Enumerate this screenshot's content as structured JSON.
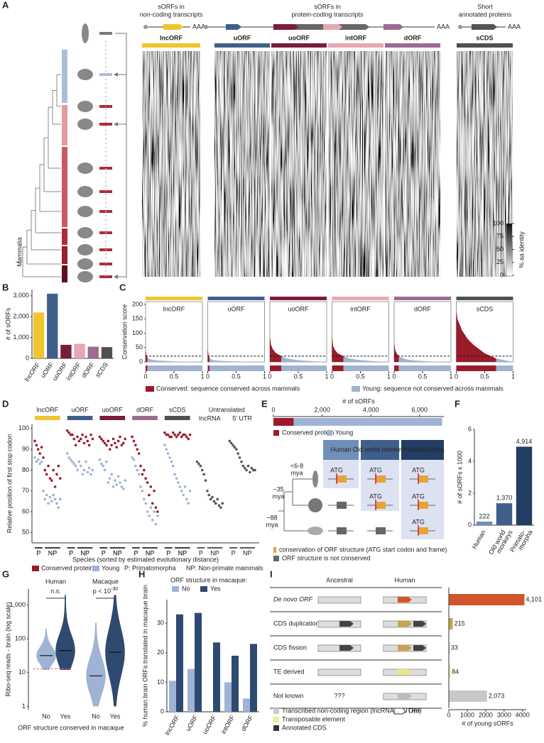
{
  "figure_a": {
    "panel": "A",
    "group_titles": [
      [
        "sORFs in",
        "non-coding transcripts"
      ],
      [
        "sORFs in",
        "protein-coding transcripts"
      ],
      [
        "Short",
        "annotated proteins"
      ]
    ],
    "polyA": "AAA",
    "orf_types": [
      {
        "name": "lncORF",
        "color": "#f0c52e"
      },
      {
        "name": "uORF",
        "color": "#3f5f8a"
      },
      {
        "name": "uoORF",
        "color": "#7a1d3a"
      },
      {
        "name": "intORF",
        "color": "#e8a6b0"
      },
      {
        "name": "dORF",
        "color": "#9c6b92"
      },
      {
        "name": "sCDS",
        "color": "#505050"
      }
    ],
    "clade_label": "Mammalia",
    "colorbar": {
      "title": "% aa identity",
      "ticks": [
        0,
        25,
        50,
        75,
        100
      ],
      "lim": [
        0,
        100
      ]
    }
  },
  "chart_data": [
    {
      "type": "bar",
      "panel": "B",
      "ylabel": "# of sORFs",
      "categories": [
        "lncORF",
        "uORF",
        "uoORF",
        "intORF",
        "dORF",
        "sCDS"
      ],
      "values": [
        2200,
        3100,
        650,
        700,
        560,
        540
      ],
      "colors": [
        "#f0c52e",
        "#3f5f8a",
        "#7a1d3a",
        "#e8a6b0",
        "#9c6b92",
        "#505050"
      ],
      "ylim": [
        0,
        3300
      ],
      "yticks": [
        0,
        {
          "value": 1000,
          "label": "1,000"
        },
        {
          "value": 2000,
          "label": "2,000"
        },
        {
          "value": 3000,
          "label": "3,000"
        }
      ]
    },
    {
      "type": "area",
      "panel": "C",
      "ylabel": "Conservation score",
      "ylim": [
        0,
        210
      ],
      "yticks": [
        0,
        50,
        100,
        150,
        200
      ],
      "xlim": [
        0,
        1
      ],
      "xticks": [
        0,
        0.5,
        1
      ],
      "threshold": 20,
      "x": [
        0,
        0.02,
        0.05,
        0.1,
        0.2,
        0.3,
        0.5,
        0.7,
        1
      ],
      "conserved_color": "#9b1b2a",
      "young_color": "#9fb3d4",
      "panels": [
        {
          "name": "lncORF",
          "color": "#f0c52e",
          "values": [
            40,
            20,
            12,
            8,
            5,
            4,
            2,
            1,
            0
          ],
          "conserved_fraction": 0.03
        },
        {
          "name": "uORF",
          "color": "#3f5f8a",
          "values": [
            45,
            18,
            10,
            6,
            4,
            3,
            2,
            1,
            0
          ],
          "conserved_fraction": 0.03
        },
        {
          "name": "uoORF",
          "color": "#7a1d3a",
          "values": [
            90,
            60,
            45,
            32,
            20,
            12,
            6,
            3,
            0
          ],
          "conserved_fraction": 0.2
        },
        {
          "name": "intORF",
          "color": "#e8a6b0",
          "values": [
            90,
            55,
            42,
            30,
            20,
            12,
            6,
            3,
            0
          ],
          "conserved_fraction": 0.2
        },
        {
          "name": "dORF",
          "color": "#9c6b92",
          "values": [
            70,
            40,
            28,
            18,
            10,
            6,
            3,
            1,
            0
          ],
          "conserved_fraction": 0.08
        },
        {
          "name": "sCDS",
          "color": "#505050",
          "values": [
            180,
            150,
            135,
            110,
            80,
            60,
            30,
            12,
            0
          ],
          "conserved_fraction": 0.7
        }
      ],
      "legend": [
        "Conserved: sequence conserved across mammals",
        "Young: sequence not conserved across mammals"
      ]
    },
    {
      "type": "scatter",
      "panel": "D",
      "ylabel": "Relative position of first stop codon",
      "xlabel": "Species (sorted by estimated evolutionary distance)",
      "ylim": [
        45,
        102
      ],
      "yticks": [
        50,
        60,
        70,
        80,
        90,
        100
      ],
      "xtick_labels": [
        "P",
        "NP"
      ],
      "conserved_color": "#9b1b2a",
      "young_color": "#9fb3d4",
      "groups": [
        {
          "name": "lncORF",
          "color": "#f0c52e",
          "conserved": [
            94,
            92,
            90,
            88,
            91,
            86,
            80,
            78,
            82,
            76,
            75,
            80,
            72,
            78,
            82,
            76
          ],
          "young": [
            86,
            84,
            85,
            83,
            84,
            70,
            66,
            68,
            64,
            67,
            65,
            68,
            66,
            64,
            62,
            66
          ]
        },
        {
          "name": "uORF",
          "color": "#3f5f8a",
          "conserved": [
            99,
            98,
            97,
            97,
            95,
            92,
            96,
            94,
            95,
            97,
            93,
            96,
            94,
            92,
            97,
            95
          ],
          "young": [
            88,
            86,
            85,
            84,
            83,
            82,
            80,
            84,
            82,
            78,
            80,
            84,
            79,
            81,
            78,
            80
          ]
        },
        {
          "name": "uoORF",
          "color": "#7a1d3a",
          "conserved": [
            96,
            95,
            94,
            93,
            92,
            94,
            90,
            92,
            95,
            93,
            91,
            94,
            96,
            92,
            93,
            95
          ],
          "young": [
            85,
            83,
            82,
            80,
            84,
            74,
            76,
            78,
            72,
            75,
            73,
            77,
            74,
            72,
            71,
            75
          ]
        },
        {
          "name": "dORF",
          "color": "#9c6b92",
          "conserved": [
            96,
            94,
            92,
            90,
            88,
            82,
            78,
            80,
            76,
            74,
            68,
            72,
            64,
            70,
            62,
            60
          ],
          "young": [
            86,
            85,
            82,
            80,
            78,
            72,
            70,
            66,
            64,
            60,
            58,
            62,
            56,
            60,
            54,
            58
          ]
        },
        {
          "name": "sCDS",
          "color": "#505050",
          "conserved": [
            98,
            97,
            97,
            96,
            96,
            98,
            97,
            96,
            97,
            98,
            96,
            97,
            97,
            96,
            95,
            97
          ],
          "young": [
            92,
            90,
            88,
            86,
            84,
            82,
            78,
            76,
            74,
            72,
            70,
            68,
            72,
            66,
            64,
            70
          ]
        }
      ],
      "untranslated_title": "Untranslated",
      "untranslated": [
        {
          "name": "lncRNA",
          "values": [
            84,
            83,
            82,
            80,
            78,
            75,
            70,
            68,
            66,
            67,
            65,
            64,
            66,
            63,
            62,
            64
          ]
        },
        {
          "name": "5' UTR",
          "values": [
            94,
            93,
            92,
            91,
            90,
            88,
            86,
            84,
            82,
            81,
            80,
            82,
            79,
            81,
            80,
            80
          ]
        }
      ],
      "legend": [
        "Conserved protein",
        "Young",
        "P: Primatomorpha",
        "NP: Non-primate mammals"
      ]
    },
    {
      "type": "stacked_bar",
      "panel": "E",
      "xlabel": "# of sORFs",
      "xlim": [
        0,
        7000
      ],
      "xticks": [
        0,
        {
          "value": 2000,
          "label": "2,000"
        },
        {
          "value": 4000,
          "label": "4,000"
        },
        {
          "value": 6000,
          "label": "6,000"
        }
      ],
      "series": [
        {
          "name": "Conserved protein",
          "color": "#9b1b2a",
          "values": [
            830
          ]
        },
        {
          "name": "Young",
          "color": "#9fb3d4",
          "values": [
            6100
          ]
        }
      ],
      "columns": [
        "Human",
        "Old world monkeys",
        "Primatomorpha"
      ],
      "times": [
        [
          "<6-8",
          "mya"
        ],
        [
          "~35",
          "mya"
        ],
        [
          "~88",
          "mya"
        ]
      ],
      "codon": "ATG",
      "diagram_legend": [
        "conservation of ORF structure (ATG start codon and frame)",
        "ORF structure is not conserved"
      ]
    },
    {
      "type": "bar",
      "panel": "F",
      "ylabel": "# of sORFs x 1000",
      "categories": [
        [
          "Human"
        ],
        [
          "Old world",
          "monkeys"
        ],
        [
          "Primato-",
          "morpha"
        ]
      ],
      "values": [
        0.222,
        1.37,
        4.914
      ],
      "value_labels": [
        "222",
        "1,370",
        "4,914"
      ],
      "colors": [
        "#6f8fb8",
        "#3f5f8a",
        "#233e63"
      ],
      "ylim": [
        0,
        6
      ],
      "yticks": [
        0,
        2,
        4,
        6
      ]
    },
    {
      "type": "violin",
      "panel": "G",
      "ylabel": "Ribo-seq reads - brain (log scale)",
      "xlabel": "ORF structure conserved in macaque",
      "log": true,
      "ylim": [
        0.8,
        3000
      ],
      "yticks": [
        1,
        10,
        100,
        {
          "value": 1000,
          "label": "1,000"
        }
      ],
      "categories": [
        "No",
        "Yes"
      ],
      "colors": [
        "#9fb3d4",
        "#2e4a70"
      ],
      "groups": [
        {
          "name": "Human",
          "annotation": "n.s.",
          "medians": [
            32,
            45
          ],
          "ranges": [
            [
              12,
              200
            ],
            [
              12,
              2000
            ]
          ],
          "reference": 13
        },
        {
          "name": "Macaque",
          "annotation": "p < 10",
          "annotation_exponent": "-30",
          "medians": [
            8,
            40
          ],
          "ranges": [
            [
              1,
              300
            ],
            [
              1,
              2000
            ]
          ]
        }
      ]
    },
    {
      "type": "grouped_bar",
      "panel": "H",
      "title": "ORF structure in macaque:",
      "ylabel": "% human brain ORFs translated in macaque brain",
      "categories": [
        "lncORF",
        "uORF",
        "uoORF",
        "intORF",
        "dORF"
      ],
      "series": [
        {
          "name": "No",
          "color": "#9fb3d4",
          "values": [
            10.5,
            14.5,
            null,
            10,
            4.5
          ]
        },
        {
          "name": "Yes",
          "color": "#2e4a70",
          "values": [
            33,
            33.5,
            23.5,
            19,
            23
          ]
        }
      ],
      "ylim": [
        0,
        38
      ],
      "yticks": [
        0,
        10,
        20,
        30
      ]
    },
    {
      "type": "barh",
      "panel": "I",
      "headers": [
        "Ancestral",
        "Human"
      ],
      "categories": [
        "De novo ORF",
        "CDS duplication",
        "CDS fission",
        "TE derived",
        "Not known"
      ],
      "values": [
        4101,
        215,
        33,
        84,
        2073
      ],
      "value_labels": [
        "4,101",
        "215",
        "33",
        "84",
        "2,073"
      ],
      "colors": [
        "#d2552b",
        "#c9a24a",
        "#c9a24a",
        "#ede68a",
        "#c8c8c8"
      ],
      "xlabel": "# of young sORFs",
      "xlim": [
        0,
        4200
      ],
      "xticks": [
        0,
        1000,
        2000,
        3000,
        4000
      ],
      "unknown": "???",
      "legend": [
        "Transcribed non-coding region (lncRNA or UTRs)",
        "Transposable element",
        "Annotated CDS",
        "ORF"
      ]
    }
  ]
}
